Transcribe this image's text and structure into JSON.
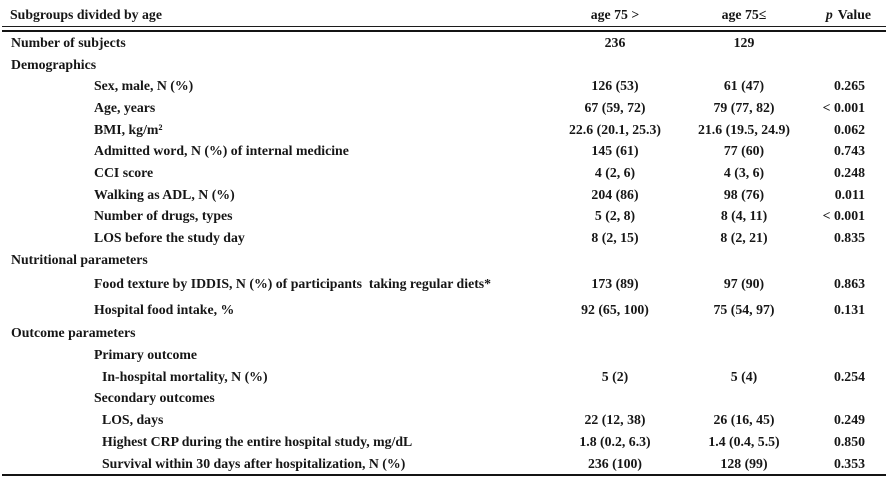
{
  "table": {
    "header": {
      "col1": "Subgroups divided by age",
      "col2": "age 75 >",
      "col3": "age 75≤",
      "p_italic": "p",
      "p_rest": "Value"
    },
    "rows": [
      {
        "label": "Number of subjects",
        "indent": 0,
        "col2": "236",
        "col3": "129",
        "p": ""
      },
      {
        "label": "Demographics",
        "indent": 0,
        "col2": "",
        "col3": "",
        "p": ""
      },
      {
        "label": "Sex, male, N (%)",
        "indent": 1,
        "col2": "126 (53)",
        "col3": "61 (47)",
        "p": "0.265"
      },
      {
        "label": "Age, years",
        "indent": 1,
        "col2": "67 (59, 72)",
        "col3": "79 (77, 82)",
        "p": "< 0.001"
      },
      {
        "label": "BMI, kg/m²",
        "indent": 1,
        "col2": "22.6 (20.1, 25.3)",
        "col3": "21.6 (19.5, 24.9)",
        "p": "0.062"
      },
      {
        "label": "Admitted word, N (%) of internal medicine",
        "indent": 1,
        "col2": "145 (61)",
        "col3": "77 (60)",
        "p": "0.743"
      },
      {
        "label": "CCI score",
        "indent": 1,
        "col2": "4 (2, 6)",
        "col3": "4 (3, 6)",
        "p": "0.248"
      },
      {
        "label": "Walking as ADL, N (%)",
        "indent": 1,
        "col2": "204 (86)",
        "col3": "98 (76)",
        "p": "0.011"
      },
      {
        "label": "Number of drugs, types",
        "indent": 1,
        "col2": "5 (2, 8)",
        "col3": "8 (4, 11)",
        "p": "< 0.001"
      },
      {
        "label": "LOS before the study day",
        "indent": 1,
        "col2": "8 (2, 15)",
        "col3": "8 (2, 21)",
        "p": "0.835"
      },
      {
        "label": "Nutritional parameters",
        "indent": 0,
        "col2": "",
        "col3": "",
        "p": ""
      },
      {
        "label": "Food texture by IDDIS, N (%) of participants  taking regular diets*",
        "indent": 1,
        "tall": true,
        "col2": "173 (89)",
        "col3": "97 (90)",
        "p": "0.863"
      },
      {
        "label": "Hospital food intake, %",
        "indent": 1,
        "tall": true,
        "col2": "92 (65, 100)",
        "col3": "75 (54, 97)",
        "p": "0.131"
      },
      {
        "label": "Outcome parameters",
        "indent": 0,
        "col2": "",
        "col3": "",
        "p": ""
      },
      {
        "label": "Primary outcome",
        "indent": 1,
        "col2": "",
        "col3": "",
        "p": ""
      },
      {
        "label": "In-hospital mortality, N (%)",
        "indent": 2,
        "col2": "5 (2)",
        "col3": "5 (4)",
        "p": "0.254"
      },
      {
        "label": "Secondary outcomes",
        "indent": 1,
        "col2": "",
        "col3": "",
        "p": ""
      },
      {
        "label": "LOS, days",
        "indent": 2,
        "col2": "22 (12, 38)",
        "col3": "26 (16, 45)",
        "p": "0.249"
      },
      {
        "label": "Highest CRP during the entire hospital study, mg/dL",
        "indent": 2,
        "col2": "1.8 (0.2, 6.3)",
        "col3": "1.4 (0.4, 5.5)",
        "p": "0.850"
      },
      {
        "label": "Survival within 30 days after hospitalization, N (%)",
        "indent": 2,
        "col2": "236 (100)",
        "col3": "128 (99)",
        "p": "0.353"
      }
    ],
    "colors": {
      "text": "#161616",
      "rule": "#141414",
      "background": "#ffffff"
    }
  }
}
